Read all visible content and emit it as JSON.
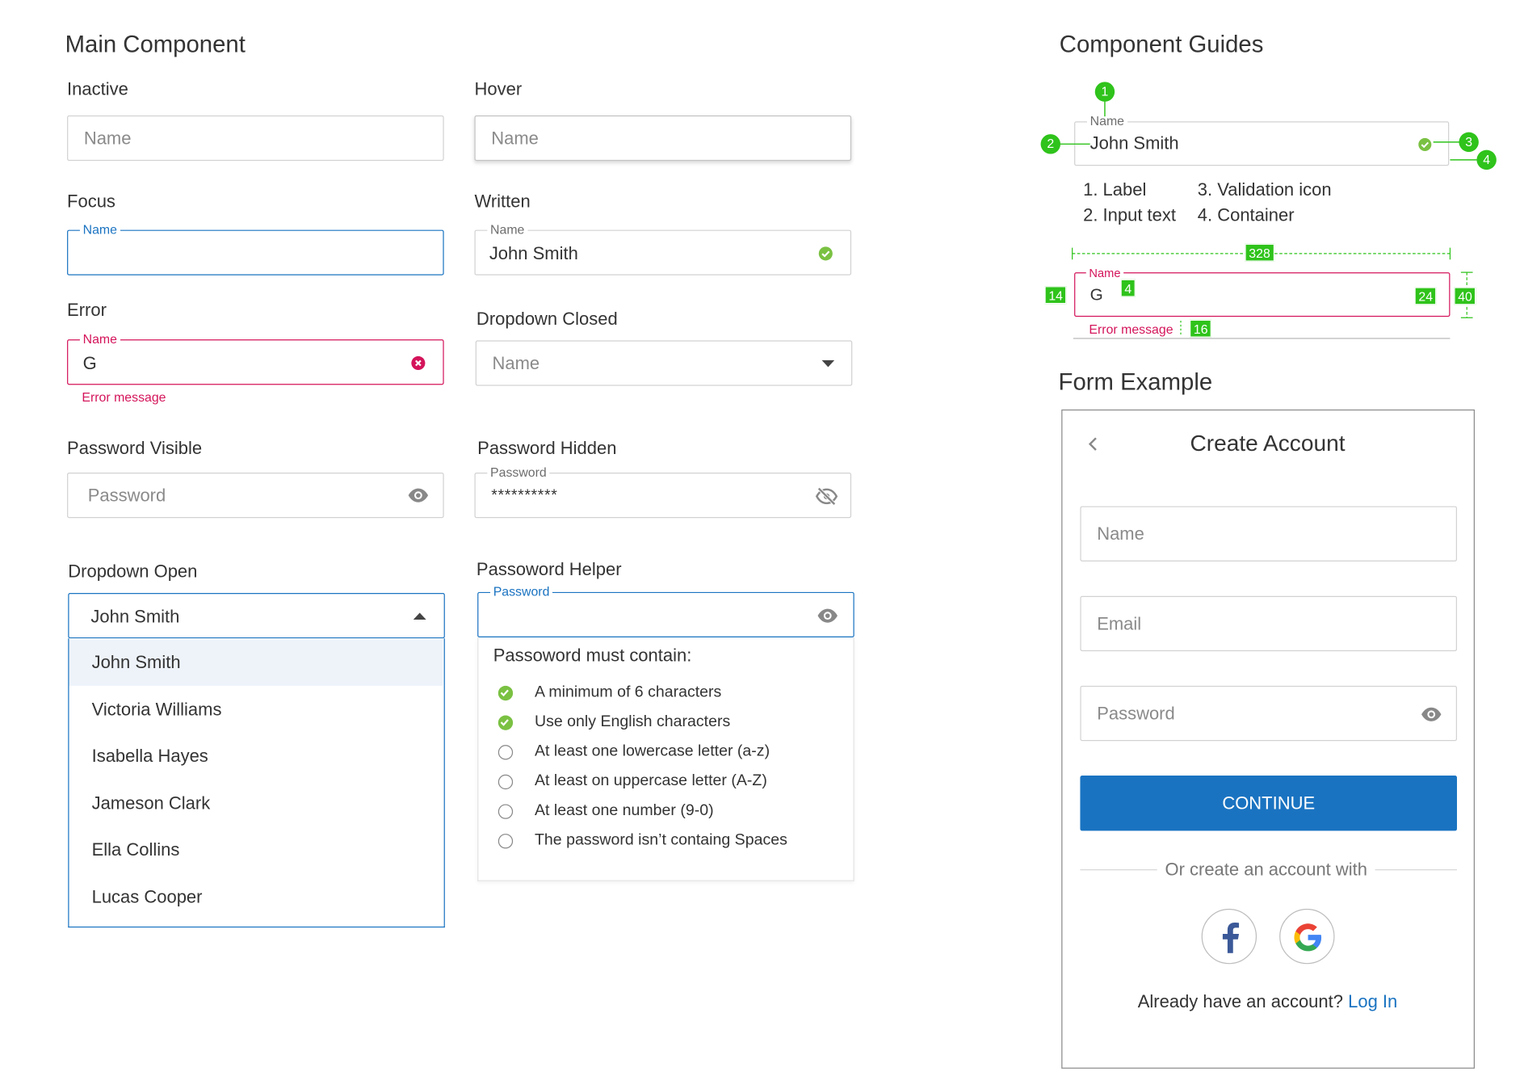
{
  "main": {
    "title": "Main Component",
    "inactive": {
      "label": "Inactive",
      "placeholder": "Name"
    },
    "hover": {
      "label": "Hover",
      "placeholder": "Name"
    },
    "focus": {
      "label": "Focus",
      "field_label": "Name"
    },
    "written": {
      "label": "Written",
      "field_label": "Name",
      "value": "John Smith"
    },
    "error": {
      "label": "Error",
      "field_label": "Name",
      "value": "G",
      "message": "Error message"
    },
    "dropdown_closed": {
      "label": "Dropdown Closed",
      "placeholder": "Name"
    },
    "password_visible": {
      "label": "Password Visible",
      "placeholder": "Password"
    },
    "password_hidden": {
      "label": "Password Hidden",
      "field_label": "Password",
      "value": "**********"
    },
    "dropdown_open": {
      "label": "Dropdown Open",
      "value": "John Smith",
      "options": [
        "John Smith",
        "Victoria Williams",
        "Isabella Hayes",
        "Jameson Clark",
        "Ella Collins",
        "Lucas Cooper"
      ]
    },
    "password_helper": {
      "label": "Passoword Helper",
      "field_label": "Password",
      "title": "Passoword must contain:",
      "rules": [
        {
          "text": "A minimum of 6 characters",
          "met": true
        },
        {
          "text": "Use only English characters",
          "met": true
        },
        {
          "text": "At least one lowercase letter (a-z)",
          "met": false
        },
        {
          "text": "At least on uppercase letter (A-Z)",
          "met": false
        },
        {
          "text": "At least one number (9-0)",
          "met": false
        },
        {
          "text": "The password isn’t containg Spaces",
          "met": false
        }
      ]
    }
  },
  "guides": {
    "title": "Component Guides",
    "example": {
      "field_label": "Name",
      "value": "John Smith"
    },
    "markers": [
      "1",
      "2",
      "3",
      "4"
    ],
    "legend": [
      "1. Label",
      "2. Input text",
      "3. Validation icon",
      "4. Container"
    ],
    "spec": {
      "field_label": "Name",
      "value": "G",
      "error": "Error message",
      "width": "328",
      "height": "40",
      "padding_left": "14",
      "label_gap": "4",
      "icon_size": "24",
      "error_gap": "16"
    }
  },
  "form": {
    "title": "Form Example",
    "header": "Create Account",
    "name_placeholder": "Name",
    "email_placeholder": "Email",
    "password_placeholder": "Password",
    "continue": "CONTINUE",
    "divider": "Or create an account with",
    "social": [
      "facebook-icon",
      "google-icon"
    ],
    "login_prompt": "Already have an account?",
    "login_link": "Log In"
  },
  "colors": {
    "primary": "#1a73c1",
    "error": "#d4145a",
    "success": "#7ac142",
    "guide": "#2fc31b"
  }
}
